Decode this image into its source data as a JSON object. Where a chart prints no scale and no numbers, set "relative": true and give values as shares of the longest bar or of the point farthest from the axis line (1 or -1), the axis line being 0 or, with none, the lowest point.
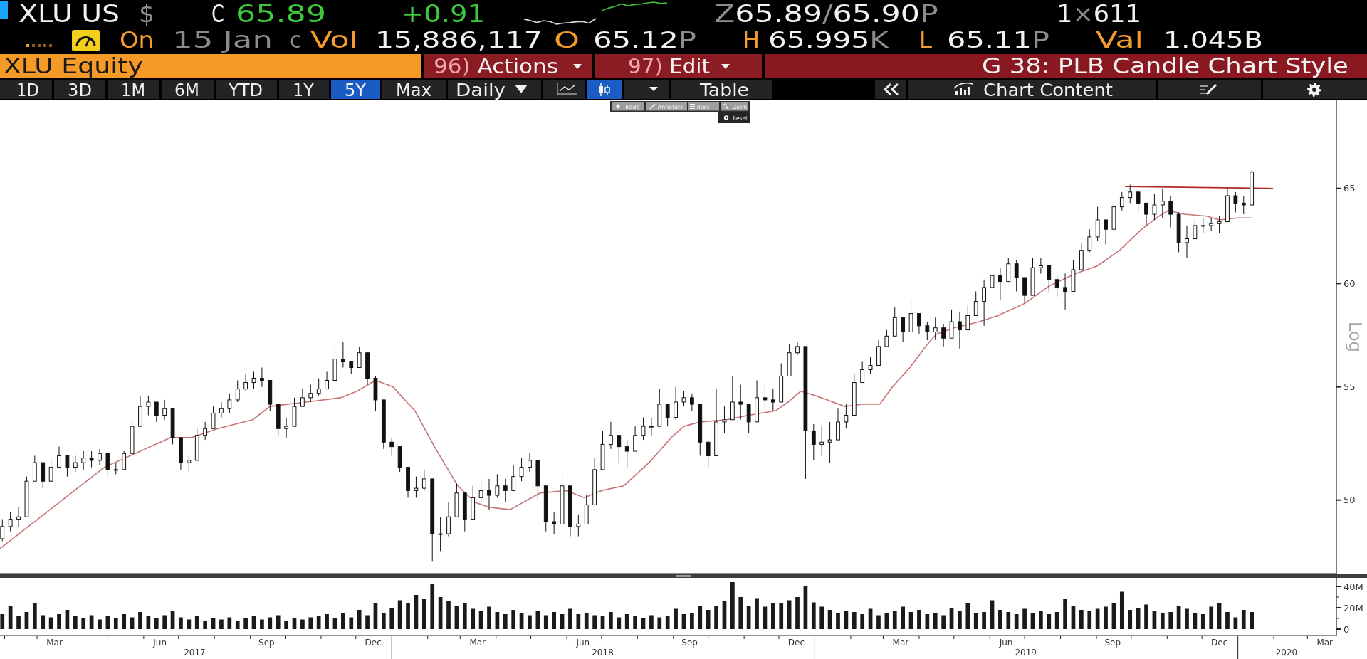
{
  "chart_data": [
    {
      "type": "other",
      "annotations": [
        "XLU US",
        "$",
        "C",
        "65.89",
        "+0.91",
        "Z65.89/65.90P",
        "1×611",
        "On",
        "15 Jan",
        "c",
        "Vol",
        "15,886,117",
        "O",
        "65.12P",
        "H",
        "65.995K",
        "L",
        "65.11P",
        "Val",
        "1.045B",
        "XLU Equity",
        "96) Actions",
        "97) Edit",
        "G 38: PLB Candle Chart Style",
        "1D",
        "3D",
        "1M",
        "6M",
        "YTD",
        "1Y",
        "5Y",
        "Max",
        "Daily",
        "Table",
        "Chart Content",
        "Trade",
        "Annotate",
        "News",
        "Zoom",
        "Reset"
      ]
    },
    {
      "type": "line",
      "relative": true,
      "categories": [
        null,
        null,
        null,
        null,
        null,
        null,
        null,
        null,
        null,
        null,
        null,
        null,
        null,
        null,
        null,
        null,
        null,
        null,
        null,
        null,
        null,
        null,
        null
      ],
      "series": [
        {
          "color": "#e0e0e0",
          "values": [
            0.23,
            0.16,
            0.08,
            0.16,
            0.12,
            0,
            0.05,
            0.07,
            0.11,
            0.12,
            0.05,
            0.25,
            null,
            null,
            null,
            null,
            null,
            null,
            null,
            null,
            null,
            null,
            null
          ]
        },
        {
          "color": "#3cc03c",
          "values": [
            null,
            null,
            null,
            null,
            null,
            null,
            null,
            null,
            null,
            null,
            null,
            null,
            0.62,
            0.73,
            0.81,
            0.92,
            0.84,
            0.89,
            0.91,
            0.97,
            1,
            0.94,
            0.97
          ]
        }
      ]
    },
    {
      "type": "candlestick",
      "color": "#111111",
      "log": true,
      "ylabel": "Log",
      "tick_labels": "y",
      "xlim": [
        "2017-01-28",
        "2020-03-26"
      ],
      "ylim": [
        47,
        70
      ],
      "yticks": [
        50,
        55,
        60,
        65
      ],
      "x": [
        "2017-01-30",
        "2017-02-06",
        "2017-02-13",
        "2017-02-20",
        "2017-02-27",
        "2017-03-06",
        "2017-03-13",
        "2017-03-20",
        "2017-03-27",
        "2017-04-03",
        "2017-04-10",
        "2017-04-17",
        "2017-04-24",
        "2017-05-01",
        "2017-05-08",
        "2017-05-15",
        "2017-05-22",
        "2017-05-29",
        "2017-06-05",
        "2017-06-12",
        "2017-06-19",
        "2017-06-26",
        "2017-07-03",
        "2017-07-10",
        "2017-07-17",
        "2017-07-24",
        "2017-07-31",
        "2017-08-07",
        "2017-08-14",
        "2017-08-21",
        "2017-08-28",
        "2017-09-04",
        "2017-09-11",
        "2017-09-18",
        "2017-09-25",
        "2017-10-02",
        "2017-10-09",
        "2017-10-16",
        "2017-10-23",
        "2017-10-30",
        "2017-11-06",
        "2017-11-13",
        "2017-11-20",
        "2017-11-27",
        "2017-12-04",
        "2017-12-11",
        "2017-12-18",
        "2017-12-25",
        "2018-01-01",
        "2018-01-08",
        "2018-01-15",
        "2018-01-22",
        "2018-01-29",
        "2018-02-05",
        "2018-02-12",
        "2018-02-19",
        "2018-02-26",
        "2018-03-05",
        "2018-03-12",
        "2018-03-19",
        "2018-03-26",
        "2018-04-02",
        "2018-04-09",
        "2018-04-16",
        "2018-04-23",
        "2018-04-30",
        "2018-05-07",
        "2018-05-14",
        "2018-05-21",
        "2018-05-28",
        "2018-06-04",
        "2018-06-11",
        "2018-06-18",
        "2018-06-25",
        "2018-07-02",
        "2018-07-09",
        "2018-07-16",
        "2018-07-23",
        "2018-07-30",
        "2018-08-06",
        "2018-08-13",
        "2018-08-20",
        "2018-08-27",
        "2018-09-03",
        "2018-09-10",
        "2018-09-17",
        "2018-09-24",
        "2018-10-01",
        "2018-10-08",
        "2018-10-15",
        "2018-10-22",
        "2018-10-29",
        "2018-11-05",
        "2018-11-12",
        "2018-11-19",
        "2018-11-26",
        "2018-12-03",
        "2018-12-10",
        "2018-12-17",
        "2018-12-24",
        "2018-12-31",
        "2019-01-07",
        "2019-01-14",
        "2019-01-21",
        "2019-01-28",
        "2019-02-04",
        "2019-02-11",
        "2019-02-18",
        "2019-02-25",
        "2019-03-04",
        "2019-03-11",
        "2019-03-18",
        "2019-03-25",
        "2019-04-01",
        "2019-04-08",
        "2019-04-15",
        "2019-04-22",
        "2019-04-29",
        "2019-05-06",
        "2019-05-13",
        "2019-05-20",
        "2019-05-27",
        "2019-06-03",
        "2019-06-10",
        "2019-06-17",
        "2019-06-24",
        "2019-07-01",
        "2019-07-08",
        "2019-07-15",
        "2019-07-22",
        "2019-07-29",
        "2019-08-05",
        "2019-08-12",
        "2019-08-19",
        "2019-08-26",
        "2019-09-02",
        "2019-09-09",
        "2019-09-16",
        "2019-09-23",
        "2019-09-30",
        "2019-10-07",
        "2019-10-14",
        "2019-10-21",
        "2019-10-28",
        "2019-11-04",
        "2019-11-11",
        "2019-11-18",
        "2019-11-25",
        "2019-12-02",
        "2019-12-09",
        "2019-12-16",
        "2019-12-23",
        "2019-12-30",
        "2020-01-06",
        "2020-01-13"
      ],
      "ohlc": [
        [
          48.4,
          49.2,
          48.3,
          48.9
        ],
        [
          48.9,
          49.5,
          48.7,
          49.2
        ],
        [
          49.2,
          49.7,
          48.9,
          49.3
        ],
        [
          49.3,
          51.0,
          49.3,
          50.8
        ],
        [
          50.8,
          51.9,
          50.8,
          51.6
        ],
        [
          51.6,
          51.6,
          50.5,
          50.8
        ],
        [
          50.8,
          51.7,
          50.8,
          51.4
        ],
        [
          51.4,
          52.3,
          51.4,
          51.9
        ],
        [
          51.9,
          51.9,
          51.0,
          51.4
        ],
        [
          51.4,
          51.9,
          51.2,
          51.6
        ],
        [
          51.6,
          52.1,
          51.3,
          51.8
        ],
        [
          51.8,
          52.1,
          51.4,
          51.7
        ],
        [
          51.7,
          52.2,
          51.5,
          52.0
        ],
        [
          52.0,
          52.0,
          51.0,
          51.3
        ],
        [
          51.3,
          51.6,
          51.1,
          51.3
        ],
        [
          51.3,
          52.1,
          51.3,
          52.0
        ],
        [
          52.0,
          53.5,
          51.9,
          53.2
        ],
        [
          53.2,
          54.6,
          53.2,
          54.1
        ],
        [
          54.1,
          54.6,
          53.7,
          54.3
        ],
        [
          54.3,
          54.3,
          53.4,
          53.7
        ],
        [
          53.7,
          54.4,
          53.5,
          54.0
        ],
        [
          54.0,
          54.0,
          52.4,
          52.7
        ],
        [
          52.7,
          52.7,
          51.3,
          51.6
        ],
        [
          51.6,
          51.9,
          51.2,
          51.7
        ],
        [
          51.7,
          53.1,
          51.7,
          52.8
        ],
        [
          52.8,
          53.4,
          52.6,
          53.1
        ],
        [
          53.1,
          54.1,
          53.1,
          53.8
        ],
        [
          53.8,
          54.3,
          53.6,
          54.0
        ],
        [
          54.0,
          54.7,
          53.8,
          54.4
        ],
        [
          54.4,
          55.3,
          54.3,
          54.9
        ],
        [
          54.9,
          55.6,
          54.8,
          55.2
        ],
        [
          55.2,
          55.7,
          54.9,
          55.4
        ],
        [
          55.4,
          55.9,
          55.0,
          55.3
        ],
        [
          55.3,
          55.3,
          53.9,
          54.2
        ],
        [
          54.2,
          54.2,
          52.8,
          53.1
        ],
        [
          53.1,
          53.6,
          52.7,
          53.2
        ],
        [
          53.2,
          54.5,
          53.2,
          54.1
        ],
        [
          54.1,
          54.9,
          54.1,
          54.5
        ],
        [
          54.5,
          55.1,
          54.3,
          54.7
        ],
        [
          54.7,
          55.4,
          54.6,
          54.9
        ],
        [
          54.9,
          55.7,
          54.9,
          55.3
        ],
        [
          55.3,
          57.0,
          55.3,
          56.3
        ],
        [
          56.3,
          57.1,
          55.9,
          56.2
        ],
        [
          56.2,
          56.2,
          55.6,
          55.9
        ],
        [
          55.9,
          56.9,
          55.9,
          56.6
        ],
        [
          56.6,
          56.6,
          55.1,
          55.4
        ],
        [
          55.4,
          55.5,
          53.9,
          54.4
        ],
        [
          54.4,
          54.4,
          52.2,
          52.5
        ],
        [
          52.5,
          52.7,
          51.9,
          52.3
        ],
        [
          52.3,
          52.3,
          51.2,
          51.4
        ],
        [
          51.4,
          51.4,
          50.1,
          50.4
        ],
        [
          50.4,
          51.0,
          50.1,
          50.5
        ],
        [
          50.5,
          51.3,
          50.4,
          50.9
        ],
        [
          50.9,
          50.9,
          47.5,
          48.6
        ],
        [
          48.6,
          49.3,
          47.9,
          48.6
        ],
        [
          48.6,
          49.9,
          48.5,
          49.3
        ],
        [
          49.3,
          50.7,
          49.3,
          50.3
        ],
        [
          50.3,
          50.3,
          48.7,
          49.2
        ],
        [
          49.2,
          50.6,
          49.2,
          50.1
        ],
        [
          50.1,
          50.9,
          49.9,
          50.4
        ],
        [
          50.4,
          50.9,
          49.6,
          50.2
        ],
        [
          50.2,
          51.1,
          50.1,
          50.6
        ],
        [
          50.6,
          50.9,
          49.9,
          50.4
        ],
        [
          50.4,
          51.5,
          50.4,
          51.0
        ],
        [
          51.0,
          51.8,
          50.8,
          51.4
        ],
        [
          51.4,
          52.0,
          51.2,
          51.7
        ],
        [
          51.7,
          51.7,
          50.0,
          50.6
        ],
        [
          50.6,
          50.6,
          48.7,
          49.1
        ],
        [
          49.1,
          49.5,
          48.6,
          49.0
        ],
        [
          49.0,
          51.2,
          49.0,
          50.6
        ],
        [
          50.6,
          50.6,
          48.5,
          48.9
        ],
        [
          48.9,
          49.4,
          48.5,
          49.0
        ],
        [
          49.0,
          50.2,
          49.0,
          49.8
        ],
        [
          49.8,
          51.8,
          49.8,
          51.3
        ],
        [
          51.3,
          53.0,
          51.3,
          52.4
        ],
        [
          52.4,
          53.4,
          52.2,
          52.8
        ],
        [
          52.8,
          52.8,
          51.6,
          52.3
        ],
        [
          52.3,
          52.6,
          51.4,
          52.1
        ],
        [
          52.1,
          53.2,
          52.1,
          52.8
        ],
        [
          52.8,
          53.6,
          52.6,
          53.2
        ],
        [
          53.2,
          53.6,
          52.8,
          53.2
        ],
        [
          53.2,
          54.9,
          53.2,
          54.2
        ],
        [
          54.2,
          54.2,
          53.2,
          53.6
        ],
        [
          53.6,
          55.0,
          53.5,
          54.3
        ],
        [
          54.3,
          54.8,
          54.1,
          54.5
        ],
        [
          54.5,
          54.7,
          53.9,
          54.2
        ],
        [
          54.2,
          54.2,
          51.9,
          52.5
        ],
        [
          52.5,
          52.5,
          51.4,
          51.9
        ],
        [
          51.9,
          54.9,
          51.9,
          53.4
        ],
        [
          53.4,
          54.1,
          52.9,
          53.5
        ],
        [
          53.5,
          55.5,
          53.5,
          54.3
        ],
        [
          54.3,
          55.1,
          53.5,
          54.2
        ],
        [
          54.2,
          54.2,
          52.9,
          53.4
        ],
        [
          53.4,
          55.3,
          53.4,
          54.5
        ],
        [
          54.5,
          55.1,
          53.9,
          54.4
        ],
        [
          54.4,
          54.9,
          53.9,
          54.3
        ],
        [
          54.3,
          56.1,
          54.3,
          55.5
        ],
        [
          55.5,
          57.0,
          55.5,
          56.6
        ],
        [
          56.6,
          57.1,
          56.5,
          56.9
        ],
        [
          56.9,
          56.9,
          50.9,
          53.0
        ],
        [
          53.0,
          53.3,
          51.7,
          52.4
        ],
        [
          52.4,
          53.2,
          51.9,
          52.5
        ],
        [
          52.5,
          53.4,
          51.6,
          52.6
        ],
        [
          52.6,
          54.0,
          52.6,
          53.4
        ],
        [
          53.4,
          54.2,
          53.1,
          53.7
        ],
        [
          53.7,
          55.6,
          53.7,
          55.2
        ],
        [
          55.2,
          56.2,
          55.2,
          55.8
        ],
        [
          55.8,
          56.4,
          55.6,
          56.0
        ],
        [
          56.0,
          57.2,
          56.0,
          56.9
        ],
        [
          56.9,
          57.7,
          56.9,
          57.4
        ],
        [
          57.4,
          58.8,
          57.4,
          58.3
        ],
        [
          58.3,
          58.3,
          57.1,
          57.6
        ],
        [
          57.6,
          59.2,
          57.6,
          58.5
        ],
        [
          58.5,
          58.5,
          57.5,
          57.9
        ],
        [
          57.9,
          58.1,
          57.2,
          57.6
        ],
        [
          57.6,
          58.3,
          57.2,
          57.8
        ],
        [
          57.8,
          58.0,
          56.9,
          57.3
        ],
        [
          57.3,
          58.7,
          57.3,
          58.1
        ],
        [
          58.1,
          58.6,
          56.8,
          57.7
        ],
        [
          57.7,
          58.9,
          57.7,
          58.4
        ],
        [
          58.4,
          59.6,
          58.4,
          59.1
        ],
        [
          59.1,
          60.2,
          57.9,
          59.8
        ],
        [
          59.8,
          61.1,
          59.5,
          60.4
        ],
        [
          60.4,
          60.8,
          59.2,
          60.1
        ],
        [
          60.1,
          61.3,
          60.1,
          61.0
        ],
        [
          61.0,
          61.2,
          59.6,
          60.3
        ],
        [
          60.3,
          60.3,
          59.0,
          59.4
        ],
        [
          59.4,
          61.3,
          59.4,
          60.8
        ],
        [
          60.8,
          61.3,
          60.5,
          60.9
        ],
        [
          60.9,
          60.9,
          59.6,
          60.2
        ],
        [
          60.2,
          60.4,
          59.3,
          59.8
        ],
        [
          59.8,
          60.5,
          58.7,
          59.6
        ],
        [
          59.6,
          61.2,
          59.6,
          60.7
        ],
        [
          60.7,
          62.1,
          60.7,
          61.7
        ],
        [
          61.7,
          62.8,
          61.6,
          62.4
        ],
        [
          62.4,
          64.0,
          62.2,
          63.3
        ],
        [
          63.3,
          63.3,
          62.0,
          62.8
        ],
        [
          62.8,
          64.3,
          62.8,
          64.0
        ],
        [
          64.0,
          64.8,
          63.8,
          64.5
        ],
        [
          64.5,
          65.2,
          64.2,
          64.8
        ],
        [
          64.8,
          64.8,
          63.6,
          64.2
        ],
        [
          64.2,
          64.2,
          63.0,
          63.6
        ],
        [
          63.6,
          64.7,
          63.3,
          64.1
        ],
        [
          64.1,
          65.0,
          63.4,
          64.3
        ],
        [
          64.3,
          64.6,
          62.9,
          63.6
        ],
        [
          63.6,
          63.7,
          61.6,
          62.1
        ],
        [
          62.1,
          63.0,
          61.3,
          62.3
        ],
        [
          62.3,
          63.4,
          62.3,
          63.0
        ],
        [
          63.0,
          63.4,
          62.6,
          63.0
        ],
        [
          63.0,
          63.4,
          62.7,
          63.1
        ],
        [
          63.1,
          63.5,
          62.6,
          63.2
        ],
        [
          63.2,
          65.0,
          63.2,
          64.6
        ],
        [
          64.6,
          64.8,
          63.7,
          64.2
        ],
        [
          64.2,
          64.6,
          63.6,
          64.1
        ],
        [
          64.1,
          66.0,
          64.1,
          65.9
        ]
      ],
      "series": [
        {
          "type": "line",
          "color": "#c87474",
          "x": [
            "2017-01-28",
            "2017-04-28",
            "2017-06-24",
            "2017-07-12",
            "2017-08-04",
            "2017-09-03",
            "2017-09-18",
            "2017-10-19",
            "2017-11-18",
            "2017-12-02",
            "2017-12-18",
            "2018-01-02",
            "2018-01-21",
            "2018-02-08",
            "2018-02-27",
            "2018-03-14",
            "2018-03-26",
            "2018-04-13",
            "2018-05-09",
            "2018-06-01",
            "2018-06-16",
            "2018-07-01",
            "2018-07-20",
            "2018-08-11",
            "2018-08-30",
            "2018-09-10",
            "2018-09-24",
            "2018-10-17",
            "2018-11-05",
            "2018-11-28",
            "2018-12-09",
            "2018-12-20",
            "2019-01-01",
            "2019-01-12",
            "2019-01-27",
            "2019-02-11",
            "2019-02-26",
            "2019-03-09",
            "2019-03-24",
            "2019-04-08",
            "2019-04-16",
            "2019-05-01",
            "2019-05-23",
            "2019-06-08",
            "2019-07-01",
            "2019-07-23",
            "2019-08-14",
            "2019-09-02",
            "2019-09-21",
            "2019-10-10",
            "2019-10-25",
            "2019-11-02",
            "2019-11-16",
            "2019-12-05",
            "2019-12-16",
            "2020-01-01",
            "2020-01-13"
          ],
          "values": [
            48.0,
            51.4,
            52.7,
            52.7,
            53.1,
            53.5,
            54.1,
            54.3,
            54.5,
            54.8,
            55.3,
            55.0,
            53.9,
            52.2,
            50.6,
            49.9,
            49.7,
            49.6,
            50.3,
            50.4,
            50.1,
            50.4,
            50.6,
            51.6,
            52.7,
            53.2,
            53.4,
            53.5,
            53.7,
            53.9,
            54.3,
            54.8,
            54.6,
            54.4,
            54.1,
            54.2,
            54.2,
            55.0,
            55.9,
            57.0,
            57.5,
            57.8,
            58.1,
            58.4,
            59.0,
            59.9,
            60.5,
            60.9,
            61.7,
            62.8,
            63.5,
            63.8,
            63.6,
            63.5,
            63.3,
            63.4,
            63.4
          ]
        },
        {
          "type": "line",
          "color": "#b02a2a",
          "x": [
            "2019-09-26",
            "2020-01-31"
          ],
          "values": [
            65.1,
            65.0
          ]
        }
      ]
    },
    {
      "type": "bar",
      "color": "#1a1a1a",
      "xlim": [
        "2017-01-28",
        "2020-03-26"
      ],
      "ylim": [
        -6,
        48
      ],
      "yticks": [
        0,
        {
          "value": 10,
          "label": null
        },
        {
          "value": 20,
          "label": "20M"
        },
        {
          "value": 30,
          "label": null
        },
        {
          "value": 40,
          "label": "40M"
        }
      ],
      "x": [
        "2017-01-30",
        "2017-02-06",
        "2017-02-13",
        "2017-02-20",
        "2017-02-27",
        "2017-03-06",
        "2017-03-13",
        "2017-03-20",
        "2017-03-27",
        "2017-04-03",
        "2017-04-10",
        "2017-04-17",
        "2017-04-24",
        "2017-05-01",
        "2017-05-08",
        "2017-05-15",
        "2017-05-22",
        "2017-05-29",
        "2017-06-05",
        "2017-06-12",
        "2017-06-19",
        "2017-06-26",
        "2017-07-03",
        "2017-07-10",
        "2017-07-17",
        "2017-07-24",
        "2017-07-31",
        "2017-08-07",
        "2017-08-14",
        "2017-08-21",
        "2017-08-28",
        "2017-09-04",
        "2017-09-11",
        "2017-09-18",
        "2017-09-25",
        "2017-10-02",
        "2017-10-09",
        "2017-10-16",
        "2017-10-23",
        "2017-10-30",
        "2017-11-06",
        "2017-11-13",
        "2017-11-20",
        "2017-11-27",
        "2017-12-04",
        "2017-12-11",
        "2017-12-18",
        "2017-12-25",
        "2018-01-01",
        "2018-01-08",
        "2018-01-15",
        "2018-01-22",
        "2018-01-29",
        "2018-02-05",
        "2018-02-12",
        "2018-02-19",
        "2018-02-26",
        "2018-03-05",
        "2018-03-12",
        "2018-03-19",
        "2018-03-26",
        "2018-04-02",
        "2018-04-09",
        "2018-04-16",
        "2018-04-23",
        "2018-04-30",
        "2018-05-07",
        "2018-05-14",
        "2018-05-21",
        "2018-05-28",
        "2018-06-04",
        "2018-06-11",
        "2018-06-18",
        "2018-06-25",
        "2018-07-02",
        "2018-07-09",
        "2018-07-16",
        "2018-07-23",
        "2018-07-30",
        "2018-08-06",
        "2018-08-13",
        "2018-08-20",
        "2018-08-27",
        "2018-09-03",
        "2018-09-10",
        "2018-09-17",
        "2018-09-24",
        "2018-10-01",
        "2018-10-08",
        "2018-10-15",
        "2018-10-22",
        "2018-10-29",
        "2018-11-05",
        "2018-11-12",
        "2018-11-19",
        "2018-11-26",
        "2018-12-03",
        "2018-12-10",
        "2018-12-17",
        "2018-12-24",
        "2018-12-31",
        "2019-01-07",
        "2019-01-14",
        "2019-01-21",
        "2019-01-28",
        "2019-02-04",
        "2019-02-11",
        "2019-02-18",
        "2019-02-25",
        "2019-03-04",
        "2019-03-11",
        "2019-03-18",
        "2019-03-25",
        "2019-04-01",
        "2019-04-08",
        "2019-04-15",
        "2019-04-22",
        "2019-04-29",
        "2019-05-06",
        "2019-05-13",
        "2019-05-20",
        "2019-05-27",
        "2019-06-03",
        "2019-06-10",
        "2019-06-17",
        "2019-06-24",
        "2019-07-01",
        "2019-07-08",
        "2019-07-15",
        "2019-07-22",
        "2019-07-29",
        "2019-08-05",
        "2019-08-12",
        "2019-08-19",
        "2019-08-26",
        "2019-09-02",
        "2019-09-09",
        "2019-09-16",
        "2019-09-23",
        "2019-09-30",
        "2019-10-07",
        "2019-10-14",
        "2019-10-21",
        "2019-10-28",
        "2019-11-04",
        "2019-11-11",
        "2019-11-18",
        "2019-11-25",
        "2019-12-02",
        "2019-12-09",
        "2019-12-16",
        "2019-12-23",
        "2019-12-30",
        "2020-01-06",
        "2020-01-13"
      ],
      "values": [
        14,
        22,
        12,
        16,
        24,
        13,
        11,
        14,
        18,
        12,
        10,
        13,
        9,
        12,
        10,
        14,
        11,
        16,
        12,
        10,
        13,
        17,
        11,
        9,
        12,
        8,
        10,
        9,
        11,
        8,
        10,
        12,
        9,
        11,
        13,
        8,
        10,
        9,
        11,
        12,
        14,
        10,
        15,
        11,
        18,
        13,
        24,
        15,
        20,
        27,
        24,
        32,
        28,
        42,
        30,
        26,
        22,
        24,
        19,
        17,
        21,
        16,
        14,
        18,
        15,
        13,
        17,
        13,
        16,
        14,
        19,
        14,
        15,
        13,
        12,
        16,
        11,
        14,
        12,
        10,
        13,
        11,
        12,
        19,
        14,
        15,
        22,
        18,
        22,
        26,
        44,
        30,
        22,
        29,
        21,
        24,
        24,
        27,
        30,
        40,
        25,
        21,
        18,
        15,
        17,
        16,
        14,
        19,
        13,
        15,
        17,
        21,
        16,
        18,
        14,
        15,
        13,
        20,
        17,
        24,
        15,
        16,
        27,
        18,
        16,
        14,
        19,
        15,
        17,
        14,
        16,
        28,
        22,
        18,
        17,
        19,
        21,
        24,
        35,
        18,
        20,
        23,
        17,
        15,
        16,
        22,
        19,
        15,
        14,
        21,
        24,
        16,
        11,
        18,
        16
      ],
      "xticks": [
        {
          "value": "2017-02-01",
          "label": null
        },
        {
          "value": "2017-03-01",
          "label": null
        },
        {
          "value": "2017-04-01",
          "label": null
        },
        {
          "value": "2017-05-01",
          "label": null
        },
        {
          "value": "2017-06-01",
          "label": null
        },
        {
          "value": "2017-07-01",
          "label": null
        },
        {
          "value": "2017-08-01",
          "label": null
        },
        {
          "value": "2017-09-01",
          "label": null
        },
        {
          "value": "2017-10-01",
          "label": null
        },
        {
          "value": "2017-11-01",
          "label": null
        },
        {
          "value": "2017-12-01",
          "label": null
        },
        {
          "value": "2018-01-01",
          "label": null
        },
        {
          "value": "2018-02-01",
          "label": null
        },
        {
          "value": "2018-03-01",
          "label": null
        },
        {
          "value": "2018-04-01",
          "label": null
        },
        {
          "value": "2018-05-01",
          "label": null
        },
        {
          "value": "2018-06-01",
          "label": null
        },
        {
          "value": "2018-07-01",
          "label": null
        },
        {
          "value": "2018-08-01",
          "label": null
        },
        {
          "value": "2018-09-01",
          "label": null
        },
        {
          "value": "2018-10-01",
          "label": null
        },
        {
          "value": "2018-11-01",
          "label": null
        },
        {
          "value": "2018-12-01",
          "label": null
        },
        {
          "value": "2019-01-01",
          "label": null
        },
        {
          "value": "2019-02-01",
          "label": null
        },
        {
          "value": "2019-03-01",
          "label": null
        },
        {
          "value": "2019-04-01",
          "label": null
        },
        {
          "value": "2019-05-01",
          "label": null
        },
        {
          "value": "2019-06-01",
          "label": null
        },
        {
          "value": "2019-07-01",
          "label": null
        },
        {
          "value": "2019-08-01",
          "label": null
        },
        {
          "value": "2019-09-01",
          "label": null
        },
        {
          "value": "2019-10-01",
          "label": null
        },
        {
          "value": "2019-11-01",
          "label": null
        },
        {
          "value": "2019-12-01",
          "label": null
        },
        {
          "value": "2020-01-01",
          "label": null
        },
        {
          "value": "2020-02-01",
          "label": null
        },
        {
          "value": "2020-03-01",
          "label": null
        },
        {
          "value": "2017-03-16",
          "label": "Mar"
        },
        {
          "value": "2017-06-15",
          "label": "Jun"
        },
        {
          "value": "2017-09-15",
          "label": "Sep"
        },
        {
          "value": "2017-12-16",
          "label": "Dec"
        },
        {
          "value": "2018-03-16",
          "label": "Mar"
        },
        {
          "value": "2018-06-15",
          "label": "Jun"
        },
        {
          "value": "2018-09-15",
          "label": "Sep"
        },
        {
          "value": "2018-12-16",
          "label": "Dec"
        },
        {
          "value": "2019-03-16",
          "label": "Mar"
        },
        {
          "value": "2019-06-15",
          "label": "Jun"
        },
        {
          "value": "2019-09-15",
          "label": "Sep"
        },
        {
          "value": "2019-12-16",
          "label": "Dec"
        },
        {
          "value": "2020-03-16",
          "label": "Mar"
        }
      ],
      "x2lim": [
        "2017-01-28",
        "2020-03-26"
      ],
      "x2ticks": [
        {
          "value": "2017-07-15",
          "label": "2017"
        },
        {
          "value": "2018-07-02",
          "label": "2018"
        },
        {
          "value": "2019-07-02",
          "label": "2019"
        },
        {
          "value": "2020-02-12",
          "label": "2020"
        }
      ]
    }
  ]
}
